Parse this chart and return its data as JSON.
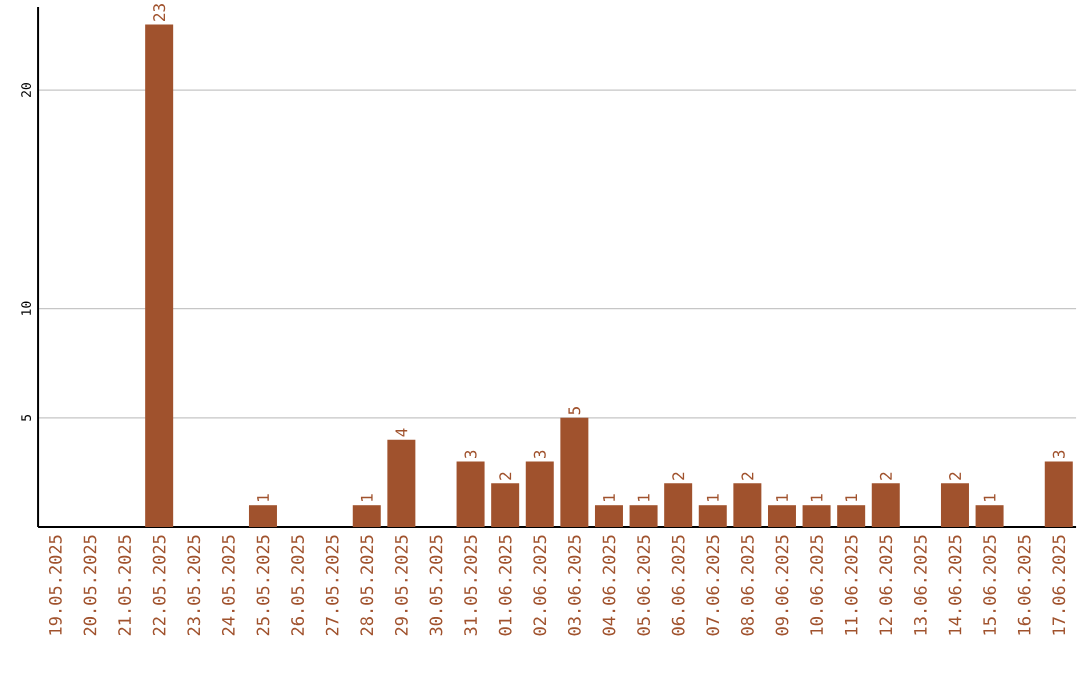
{
  "chart_data": {
    "type": "bar",
    "categories": [
      "19.05.2025",
      "20.05.2025",
      "21.05.2025",
      "22.05.2025",
      "23.05.2025",
      "24.05.2025",
      "25.05.2025",
      "26.05.2025",
      "27.05.2025",
      "28.05.2025",
      "29.05.2025",
      "30.05.2025",
      "31.05.2025",
      "01.06.2025",
      "02.06.2025",
      "03.06.2025",
      "04.06.2025",
      "05.06.2025",
      "06.06.2025",
      "07.06.2025",
      "08.06.2025",
      "09.06.2025",
      "10.06.2025",
      "11.06.2025",
      "12.06.2025",
      "13.06.2025",
      "14.06.2025",
      "15.06.2025",
      "16.06.2025",
      "17.06.2025"
    ],
    "values": [
      0,
      0,
      0,
      23,
      0,
      0,
      1,
      0,
      0,
      1,
      4,
      0,
      3,
      2,
      3,
      5,
      1,
      1,
      2,
      1,
      2,
      1,
      1,
      1,
      2,
      0,
      2,
      1,
      0,
      3
    ],
    "value_labels": [
      null,
      null,
      null,
      "23",
      null,
      null,
      "1",
      null,
      null,
      "1",
      "4",
      null,
      "3",
      "2",
      "3",
      "5",
      "1",
      "1",
      "2",
      "1",
      "2",
      "1",
      "1",
      "1",
      "2",
      null,
      "2",
      "1",
      null,
      "3"
    ],
    "color": "#a0522d",
    "ylim": [
      0,
      23.8
    ],
    "yticks": [
      5,
      10,
      20
    ],
    "grid": "y"
  }
}
